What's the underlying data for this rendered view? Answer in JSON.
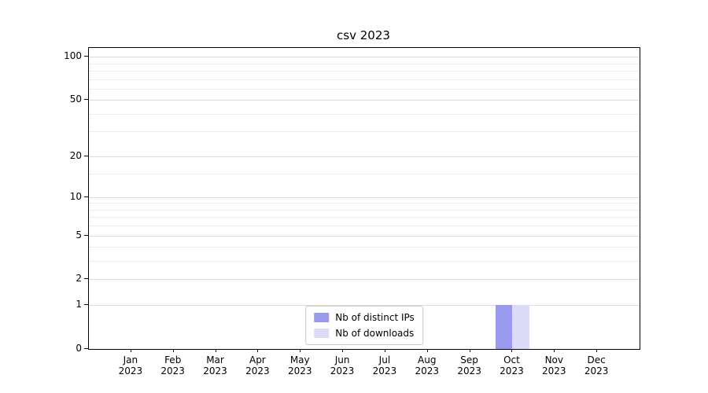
{
  "chart_data": {
    "type": "bar",
    "title": "csv 2023",
    "categories": [
      "Jan 2023",
      "Feb 2023",
      "Mar 2023",
      "Apr 2023",
      "May 2023",
      "Jun 2023",
      "Jul 2023",
      "Aug 2023",
      "Sep 2023",
      "Oct 2023",
      "Nov 2023",
      "Dec 2023"
    ],
    "series": [
      {
        "name": "Nb of distinct IPs",
        "color": "#9999ee",
        "values": [
          0,
          0,
          0,
          0,
          0,
          0,
          0,
          0,
          0,
          1,
          0,
          0
        ]
      },
      {
        "name": "Nb of downloads",
        "color": "#dcdcf8",
        "values": [
          0,
          0,
          0,
          0,
          0,
          0,
          0,
          0,
          0,
          1,
          0,
          0
        ]
      }
    ],
    "y_ticks": [
      0,
      1,
      2,
      5,
      10,
      20,
      50,
      100
    ],
    "y_minor_ticks": [
      3,
      4,
      6,
      7,
      8,
      9,
      15,
      30,
      40,
      60,
      70,
      80,
      90
    ],
    "ylim": [
      0,
      115
    ],
    "scale": "log1p",
    "grid": true,
    "legend_position": "lower center"
  }
}
